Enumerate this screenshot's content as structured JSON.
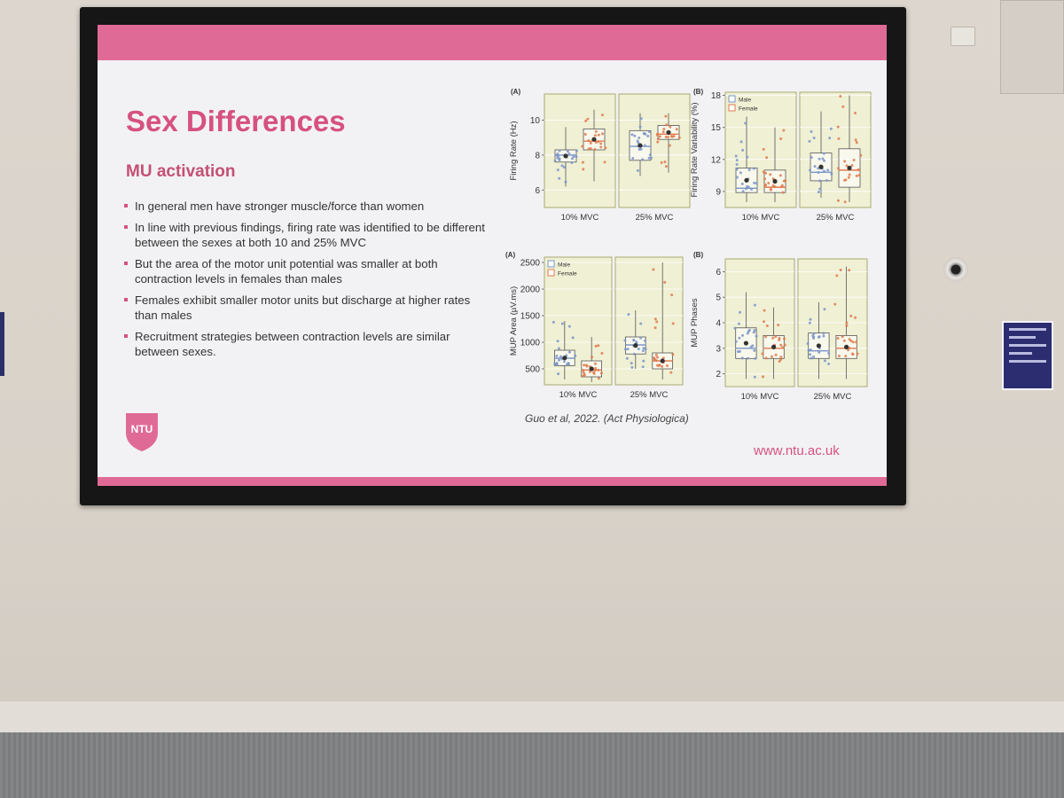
{
  "slide": {
    "title": "Sex Differences",
    "subtitle": "MU activation",
    "bullets": [
      "In general men have stronger muscle/force than women",
      "In line with previous findings, firing rate was identified to be different between the sexes at both 10 and 25% MVC",
      "But the area of the motor unit potential was smaller at both contraction levels in females than males",
      "Females exhibit smaller motor units but discharge at higher rates than males",
      "Recruitment strategies between contraction levels are similar between sexes."
    ],
    "logo_text": "NTU",
    "citation": "Guo et al, 2022. (Act Physiologica)",
    "url": "www.ntu.ac.uk",
    "accent_color": "#e06a96"
  },
  "chart_data": [
    {
      "type": "box",
      "panel_label": "(A)",
      "categories": [
        "10% MVC",
        "25% MVC"
      ],
      "ylabel": "Firing Rate (Hz)",
      "yticks": [
        6,
        8,
        10
      ],
      "ylim": [
        5,
        11.5
      ],
      "series": [
        {
          "boxes": [
            {
              "q1": 7.6,
              "median": 8.0,
              "q3": 8.3,
              "lo": 6.2,
              "hi": 9.6
            },
            {
              "q1": 7.7,
              "median": 8.5,
              "q3": 9.4,
              "lo": 6.8,
              "hi": 10.4
            }
          ]
        },
        {
          "boxes": [
            {
              "q1": 8.3,
              "median": 8.8,
              "q3": 9.5,
              "lo": 6.5,
              "hi": 10.6
            },
            {
              "q1": 8.9,
              "median": 9.2,
              "q3": 9.7,
              "lo": 7.0,
              "hi": 10.4
            }
          ]
        }
      ]
    },
    {
      "type": "box",
      "panel_label": "(B)",
      "categories": [
        "10% MVC",
        "25% MVC"
      ],
      "ylabel": "Firing Rate Variability (%)",
      "yticks": [
        9,
        12,
        15,
        18
      ],
      "ylim": [
        7.5,
        18.3
      ],
      "legend": [
        "Male",
        "Female"
      ],
      "series": [
        {
          "boxes": [
            {
              "q1": 8.9,
              "median": 9.3,
              "q3": 11.2,
              "lo": 8.0,
              "hi": 16.0
            },
            {
              "q1": 10.0,
              "median": 10.8,
              "q3": 12.6,
              "lo": 8.4,
              "hi": 16.5
            }
          ]
        },
        {
          "boxes": [
            {
              "q1": 8.9,
              "median": 9.4,
              "q3": 11.0,
              "lo": 8.0,
              "hi": 15.0
            },
            {
              "q1": 9.4,
              "median": 11.0,
              "q3": 13.0,
              "lo": 8.0,
              "hi": 18.0
            }
          ]
        }
      ]
    },
    {
      "type": "box",
      "panel_label": "(A)",
      "categories": [
        "10% MVC",
        "25% MVC"
      ],
      "ylabel": "MUP Area (µV.ms)",
      "yticks": [
        500,
        1000,
        1500,
        2000,
        2500
      ],
      "ylim": [
        200,
        2600
      ],
      "legend": [
        "Male",
        "Female"
      ],
      "series": [
        {
          "boxes": [
            {
              "q1": 560,
              "median": 700,
              "q3": 850,
              "lo": 300,
              "hi": 1400
            },
            {
              "q1": 780,
              "median": 950,
              "q3": 1100,
              "lo": 500,
              "hi": 1600
            }
          ]
        },
        {
          "boxes": [
            {
              "q1": 350,
              "median": 480,
              "q3": 650,
              "lo": 250,
              "hi": 1100
            },
            {
              "q1": 500,
              "median": 650,
              "q3": 800,
              "lo": 300,
              "hi": 2500
            }
          ]
        }
      ]
    },
    {
      "type": "box",
      "panel_label": "(B)",
      "categories": [
        "10% MVC",
        "25% MVC"
      ],
      "ylabel": "MUP Phases",
      "yticks": [
        2,
        3,
        4,
        5,
        6
      ],
      "ylim": [
        1.5,
        6.5
      ],
      "series": [
        {
          "boxes": [
            {
              "q1": 2.6,
              "median": 3.0,
              "q3": 3.8,
              "lo": 1.8,
              "hi": 5.2
            },
            {
              "q1": 2.6,
              "median": 2.9,
              "q3": 3.6,
              "lo": 1.8,
              "hi": 4.8
            }
          ]
        },
        {
          "boxes": [
            {
              "q1": 2.6,
              "median": 3.0,
              "q3": 3.5,
              "lo": 1.8,
              "hi": 4.6
            },
            {
              "q1": 2.6,
              "median": 3.0,
              "q3": 3.5,
              "lo": 1.8,
              "hi": 6.2
            }
          ]
        }
      ]
    }
  ],
  "colors": {
    "male": "#7a95c9",
    "female": "#e07a4e",
    "panel_bg": "#eff0d4",
    "panel_border": "#a8aa70"
  }
}
